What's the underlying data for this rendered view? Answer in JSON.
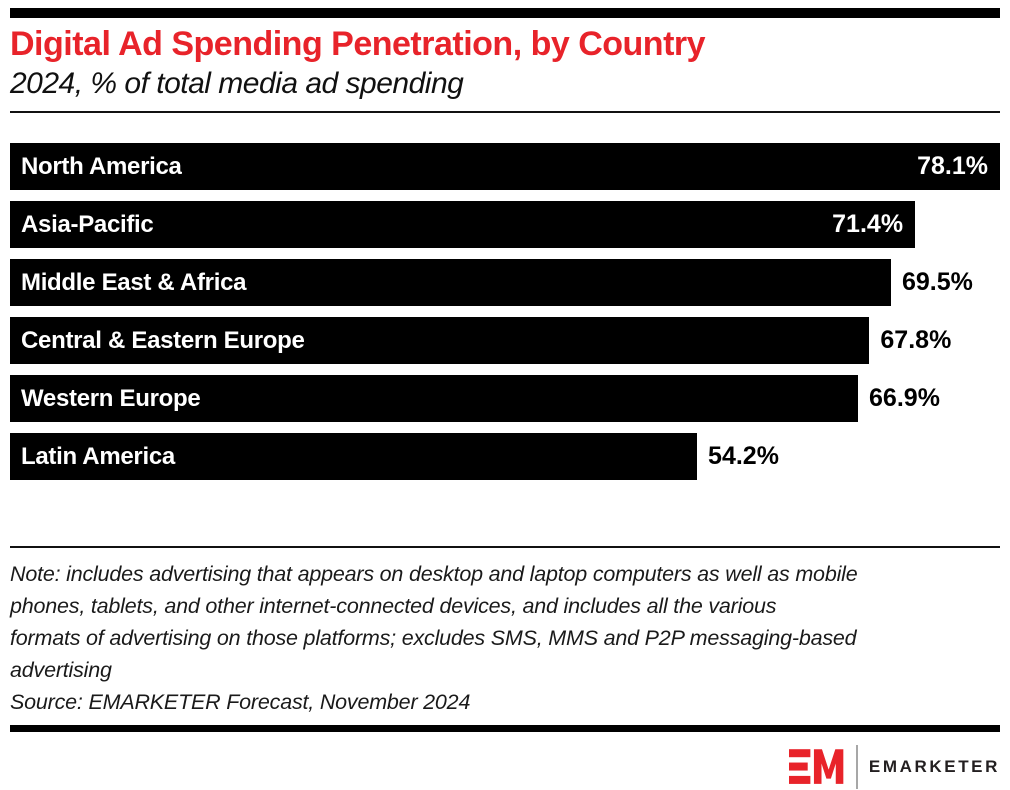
{
  "header": {
    "title": "Digital Ad Spending Penetration, by Country",
    "subtitle": "2024, % of total media ad spending",
    "accent_color": "#e8232a"
  },
  "chart_data": {
    "type": "bar",
    "orientation": "horizontal",
    "title": "Digital Ad Spending Penetration, by Country",
    "subtitle": "2024, % of total media ad spending",
    "unit": "%",
    "categories": [
      "North America",
      "Asia-Pacific",
      "Middle East & Africa",
      "Central & Eastern Europe",
      "Western Europe",
      "Latin America"
    ],
    "values": [
      78.1,
      71.4,
      69.5,
      67.8,
      66.9,
      54.2
    ],
    "value_labels": [
      "78.1%",
      "71.4%",
      "69.5%",
      "67.8%",
      "66.9%",
      "54.2%"
    ],
    "value_label_inside": [
      true,
      true,
      false,
      false,
      false,
      false
    ],
    "xlim": [
      0,
      78.1
    ],
    "bar_color": "#000000",
    "category_label_color": "#ffffff",
    "grid": false,
    "legend": false
  },
  "footer": {
    "note_lines": [
      "Note: includes advertising that appears on desktop and laptop computers as well as mobile",
      "phones, tablets, and other internet-connected devices, and includes all the various",
      "formats of advertising on those platforms; excludes SMS, MMS and P2P messaging-based",
      "advertising"
    ],
    "source": "Source: EMARKETER Forecast, November 2024",
    "logo": {
      "mark": "EM",
      "name": "EMARKETER",
      "mark_color": "#e8232a",
      "text_color": "#231f20"
    }
  }
}
